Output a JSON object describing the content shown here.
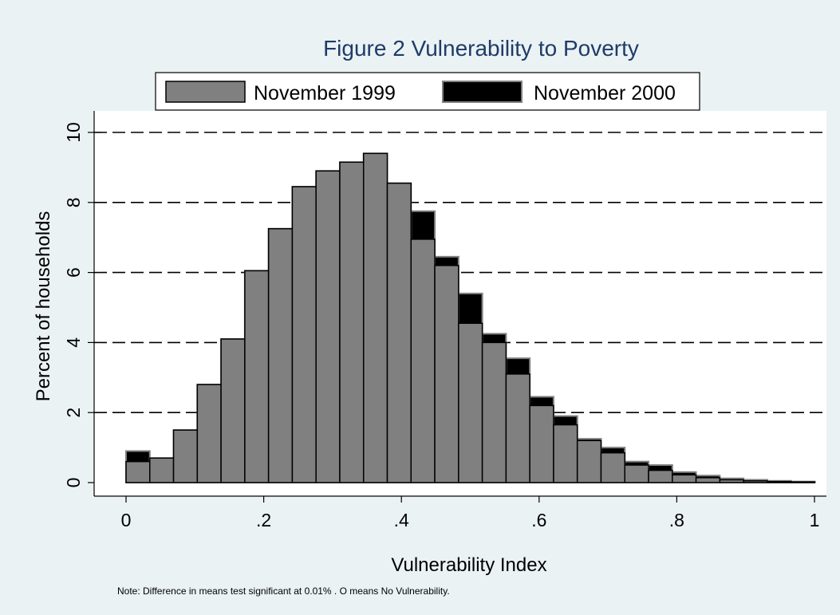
{
  "chart_data": {
    "type": "bar",
    "title": "Figure 2  Vulnerability to Poverty",
    "xlabel": "Vulnerability Index",
    "ylabel": "Percent of households",
    "note": "Note: Difference in means test significant at 0.01% . O means No Vulnerability.",
    "xlim": [
      0,
      1
    ],
    "ylim": [
      0,
      10
    ],
    "bin_width": 0.0345,
    "x_ticks": [
      0,
      0.2,
      0.4,
      0.6,
      0.8,
      1
    ],
    "x_tick_labels": [
      "0",
      ".2",
      ".4",
      ".6",
      ".8",
      "1"
    ],
    "y_ticks": [
      0,
      2,
      4,
      6,
      8,
      10
    ],
    "y_tick_labels": [
      "0",
      "2",
      "4",
      "6",
      "8",
      "10"
    ],
    "grid": "horizontal dashed",
    "legend_position": "top",
    "bin_starts": [
      0,
      0.0345,
      0.069,
      0.1035,
      0.138,
      0.1725,
      0.207,
      0.2415,
      0.276,
      0.3105,
      0.345,
      0.3795,
      0.414,
      0.4485,
      0.483,
      0.5175,
      0.552,
      0.5865,
      0.621,
      0.6555,
      0.69,
      0.7245,
      0.759,
      0.7935,
      0.828,
      0.8625,
      0.897,
      0.9315,
      0.966
    ],
    "series": [
      {
        "name": "November 1999",
        "color": "#808080",
        "values": [
          0.6,
          0.7,
          1.5,
          2.8,
          4.1,
          6.05,
          7.25,
          8.45,
          8.9,
          9.15,
          9.4,
          8.55,
          6.95,
          6.2,
          4.55,
          4.0,
          3.1,
          2.2,
          1.65,
          1.2,
          0.85,
          0.5,
          0.35,
          0.22,
          0.14,
          0.08,
          0.05,
          0.03,
          0.02
        ]
      },
      {
        "name": "November 2000",
        "color": "#000000",
        "values": [
          0.9,
          0.7,
          1.5,
          2.8,
          4.1,
          6.05,
          7.25,
          8.45,
          8.9,
          9.15,
          9.4,
          8.55,
          7.75,
          6.45,
          5.4,
          4.25,
          3.55,
          2.45,
          1.9,
          1.25,
          1.0,
          0.6,
          0.5,
          0.3,
          0.2,
          0.12,
          0.08,
          0.05,
          0.03
        ]
      }
    ]
  }
}
